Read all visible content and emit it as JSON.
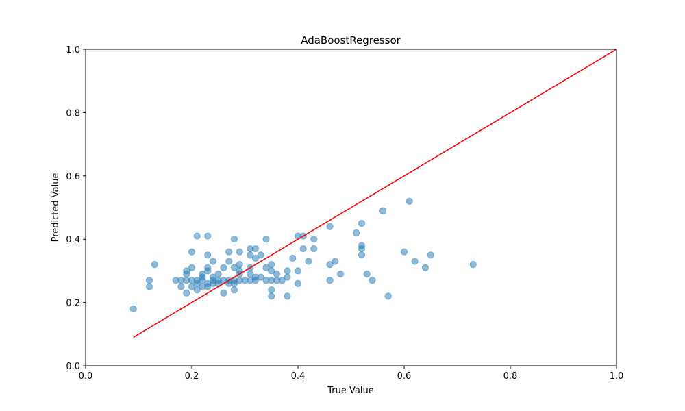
{
  "chart_data": {
    "type": "scatter",
    "title": "AdaBoostRegressor",
    "xlabel": "True Value",
    "ylabel": "Predicted Value",
    "xlim": [
      0.0,
      1.0
    ],
    "ylim": [
      0.0,
      1.0
    ],
    "x_ticks": [
      "0.0",
      "0.2",
      "0.4",
      "0.6",
      "0.8",
      "1.0"
    ],
    "y_ticks": [
      "0.0",
      "0.2",
      "0.4",
      "0.6",
      "0.8",
      "1.0"
    ],
    "grid": false,
    "marker_color": "#1f77b4",
    "marker_alpha": 0.5,
    "reference_line": {
      "x": [
        0.09,
        1.0
      ],
      "y": [
        0.09,
        1.0
      ],
      "color": "#ff0000"
    },
    "points": [
      [
        0.09,
        0.18
      ],
      [
        0.12,
        0.27
      ],
      [
        0.12,
        0.25
      ],
      [
        0.13,
        0.32
      ],
      [
        0.17,
        0.27
      ],
      [
        0.18,
        0.27
      ],
      [
        0.18,
        0.25
      ],
      [
        0.19,
        0.3
      ],
      [
        0.19,
        0.29
      ],
      [
        0.19,
        0.27
      ],
      [
        0.19,
        0.23
      ],
      [
        0.2,
        0.36
      ],
      [
        0.2,
        0.31
      ],
      [
        0.2,
        0.27
      ],
      [
        0.2,
        0.25
      ],
      [
        0.21,
        0.41
      ],
      [
        0.21,
        0.27
      ],
      [
        0.21,
        0.26
      ],
      [
        0.21,
        0.24
      ],
      [
        0.22,
        0.29
      ],
      [
        0.22,
        0.28
      ],
      [
        0.22,
        0.27
      ],
      [
        0.22,
        0.25
      ],
      [
        0.23,
        0.41
      ],
      [
        0.23,
        0.35
      ],
      [
        0.23,
        0.31
      ],
      [
        0.23,
        0.3
      ],
      [
        0.23,
        0.26
      ],
      [
        0.23,
        0.25
      ],
      [
        0.24,
        0.33
      ],
      [
        0.24,
        0.28
      ],
      [
        0.24,
        0.27
      ],
      [
        0.24,
        0.26
      ],
      [
        0.25,
        0.29
      ],
      [
        0.25,
        0.27
      ],
      [
        0.25,
        0.26
      ],
      [
        0.26,
        0.31
      ],
      [
        0.26,
        0.27
      ],
      [
        0.26,
        0.23
      ],
      [
        0.27,
        0.36
      ],
      [
        0.27,
        0.33
      ],
      [
        0.27,
        0.27
      ],
      [
        0.27,
        0.26
      ],
      [
        0.28,
        0.4
      ],
      [
        0.28,
        0.31
      ],
      [
        0.28,
        0.27
      ],
      [
        0.28,
        0.26
      ],
      [
        0.28,
        0.24
      ],
      [
        0.29,
        0.36
      ],
      [
        0.29,
        0.32
      ],
      [
        0.29,
        0.3
      ],
      [
        0.29,
        0.29
      ],
      [
        0.29,
        0.27
      ],
      [
        0.3,
        0.27
      ],
      [
        0.31,
        0.37
      ],
      [
        0.31,
        0.35
      ],
      [
        0.31,
        0.31
      ],
      [
        0.31,
        0.29
      ],
      [
        0.31,
        0.27
      ],
      [
        0.32,
        0.37
      ],
      [
        0.32,
        0.34
      ],
      [
        0.32,
        0.28
      ],
      [
        0.32,
        0.27
      ],
      [
        0.33,
        0.35
      ],
      [
        0.33,
        0.28
      ],
      [
        0.34,
        0.4
      ],
      [
        0.34,
        0.31
      ],
      [
        0.34,
        0.27
      ],
      [
        0.35,
        0.32
      ],
      [
        0.35,
        0.3
      ],
      [
        0.35,
        0.27
      ],
      [
        0.35,
        0.24
      ],
      [
        0.35,
        0.22
      ],
      [
        0.36,
        0.29
      ],
      [
        0.36,
        0.27
      ],
      [
        0.37,
        0.27
      ],
      [
        0.38,
        0.3
      ],
      [
        0.38,
        0.28
      ],
      [
        0.38,
        0.22
      ],
      [
        0.39,
        0.34
      ],
      [
        0.4,
        0.41
      ],
      [
        0.4,
        0.3
      ],
      [
        0.4,
        0.26
      ],
      [
        0.41,
        0.41
      ],
      [
        0.41,
        0.37
      ],
      [
        0.42,
        0.33
      ],
      [
        0.43,
        0.4
      ],
      [
        0.43,
        0.37
      ],
      [
        0.46,
        0.44
      ],
      [
        0.46,
        0.32
      ],
      [
        0.46,
        0.27
      ],
      [
        0.47,
        0.33
      ],
      [
        0.48,
        0.29
      ],
      [
        0.51,
        0.42
      ],
      [
        0.52,
        0.45
      ],
      [
        0.52,
        0.38
      ],
      [
        0.52,
        0.37
      ],
      [
        0.52,
        0.35
      ],
      [
        0.53,
        0.29
      ],
      [
        0.54,
        0.27
      ],
      [
        0.56,
        0.49
      ],
      [
        0.57,
        0.22
      ],
      [
        0.6,
        0.36
      ],
      [
        0.61,
        0.52
      ],
      [
        0.62,
        0.33
      ],
      [
        0.64,
        0.31
      ],
      [
        0.65,
        0.35
      ],
      [
        0.73,
        0.32
      ]
    ]
  }
}
